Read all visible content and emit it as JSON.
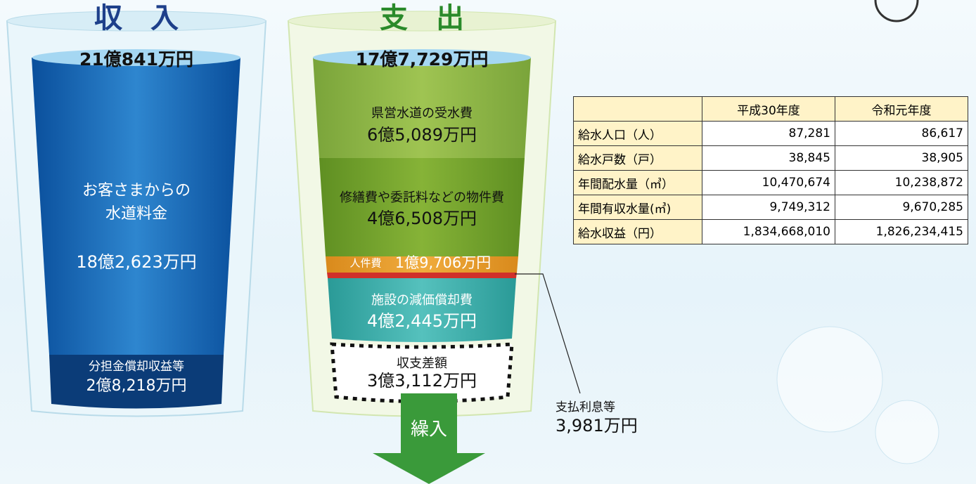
{
  "income": {
    "title": "収　入",
    "total": "21億841万円",
    "main": {
      "label_lines": [
        "お客さまからの",
        "水道料金"
      ],
      "amount": "18億2,623万円"
    },
    "sub": {
      "label": "分担金償却収益等",
      "amount": "2億8,218万円"
    }
  },
  "expense": {
    "title": "支　出",
    "total": "17億7,729万円",
    "items": [
      {
        "label": "県営水道の受水費",
        "amount": "6億5,089万円"
      },
      {
        "label": "修繕費や委託料などの物件費",
        "amount": "4億6,508万円"
      },
      {
        "label": "人件費",
        "amount": "1億9,706万円"
      },
      {
        "label": "施設の減価償却費",
        "amount": "4億2,445万円"
      }
    ],
    "balance": {
      "label": "収支差額",
      "amount": "3億3,112万円"
    },
    "interest": {
      "label": "支払利息等",
      "amount": "3,981万円"
    },
    "transfer": "繰入"
  },
  "table": {
    "header": [
      "平成30年度",
      "令和元年度"
    ],
    "rows": [
      [
        "給水人口（人）",
        "87,281",
        "86,617"
      ],
      [
        "給水戸数（戸）",
        "38,845",
        "38,905"
      ],
      [
        "年間配水量（㎥）",
        "10,470,674",
        "10,238,872"
      ],
      [
        "年間有収水量(㎥)",
        "9,749,312",
        "9,670,285"
      ],
      [
        "給水収益（円）",
        "1,834,668,010",
        "1,826,234,415"
      ]
    ]
  }
}
